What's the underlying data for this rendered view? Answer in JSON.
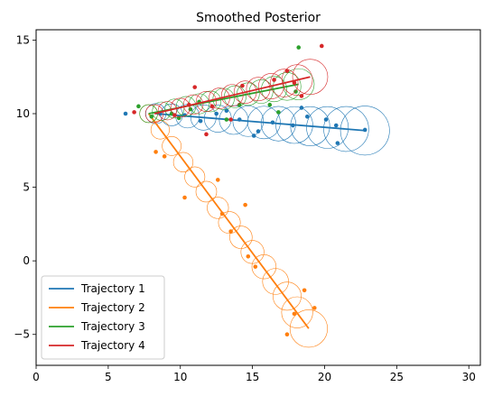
{
  "chart_data": {
    "type": "scatter",
    "title": "Smoothed Posterior",
    "xlabel": "",
    "ylabel": "",
    "xlim": [
      0,
      30.8
    ],
    "ylim": [
      -7.1,
      15.7
    ],
    "xticks": [
      0,
      5,
      10,
      15,
      20,
      25,
      30
    ],
    "yticks": [
      -5,
      0,
      5,
      10,
      15
    ],
    "grid": false,
    "legend_position": "lower-left",
    "series": [
      {
        "name": "Trajectory 1",
        "color": "#1f77b4",
        "line": [
          [
            8.3,
            10.0
          ],
          [
            22.8,
            8.85
          ]
        ],
        "circles": [
          {
            "x": 8.3,
            "y": 10.0,
            "r": 0.7
          },
          {
            "x": 9.4,
            "y": 9.92,
            "r": 0.76
          },
          {
            "x": 10.5,
            "y": 9.83,
            "r": 0.82
          },
          {
            "x": 11.6,
            "y": 9.74,
            "r": 0.88
          },
          {
            "x": 12.6,
            "y": 9.66,
            "r": 0.94
          },
          {
            "x": 13.7,
            "y": 9.57,
            "r": 1.0
          },
          {
            "x": 14.7,
            "y": 9.49,
            "r": 1.06
          },
          {
            "x": 15.8,
            "y": 9.4,
            "r": 1.13
          },
          {
            "x": 16.8,
            "y": 9.32,
            "r": 1.2
          },
          {
            "x": 17.9,
            "y": 9.23,
            "r": 1.28
          },
          {
            "x": 19.0,
            "y": 9.15,
            "r": 1.36
          },
          {
            "x": 20.2,
            "y": 9.06,
            "r": 1.45
          },
          {
            "x": 21.5,
            "y": 8.96,
            "r": 1.56
          },
          {
            "x": 22.8,
            "y": 8.85,
            "r": 1.7
          }
        ],
        "points": [
          [
            6.2,
            10.0
          ],
          [
            8.6,
            10.0
          ],
          [
            10.3,
            9.9
          ],
          [
            11.4,
            9.5
          ],
          [
            12.5,
            10.0
          ],
          [
            13.2,
            10.2
          ],
          [
            14.1,
            9.6
          ],
          [
            15.1,
            8.5
          ],
          [
            15.4,
            8.8
          ],
          [
            16.4,
            9.4
          ],
          [
            17.8,
            9.2
          ],
          [
            18.4,
            10.4
          ],
          [
            18.8,
            9.8
          ],
          [
            20.1,
            9.6
          ],
          [
            20.9,
            8.0
          ],
          [
            20.8,
            9.2
          ],
          [
            22.8,
            8.9
          ]
        ]
      },
      {
        "name": "Trajectory 2",
        "color": "#ff7f0e",
        "line": [
          [
            7.8,
            10.0
          ],
          [
            18.9,
            -4.6
          ]
        ],
        "circles": [
          {
            "x": 7.8,
            "y": 10.0,
            "r": 0.62
          },
          {
            "x": 8.6,
            "y": 8.9,
            "r": 0.64
          },
          {
            "x": 9.4,
            "y": 7.8,
            "r": 0.66
          },
          {
            "x": 10.2,
            "y": 6.7,
            "r": 0.68
          },
          {
            "x": 11.0,
            "y": 5.7,
            "r": 0.7
          },
          {
            "x": 11.8,
            "y": 4.7,
            "r": 0.72
          },
          {
            "x": 12.6,
            "y": 3.6,
            "r": 0.74
          },
          {
            "x": 13.4,
            "y": 2.6,
            "r": 0.76
          },
          {
            "x": 14.2,
            "y": 1.6,
            "r": 0.78
          },
          {
            "x": 15.0,
            "y": 0.6,
            "r": 0.8
          },
          {
            "x": 15.8,
            "y": -0.4,
            "r": 0.84
          },
          {
            "x": 16.6,
            "y": -1.4,
            "r": 0.9
          },
          {
            "x": 17.4,
            "y": -2.4,
            "r": 0.98
          },
          {
            "x": 18.1,
            "y": -3.5,
            "r": 1.08
          },
          {
            "x": 18.9,
            "y": -4.6,
            "r": 1.3
          }
        ],
        "points": [
          [
            8.3,
            7.4
          ],
          [
            8.9,
            7.1
          ],
          [
            10.3,
            4.3
          ],
          [
            12.6,
            5.5
          ],
          [
            12.9,
            3.2
          ],
          [
            13.5,
            2.0
          ],
          [
            14.5,
            3.8
          ],
          [
            14.7,
            0.3
          ],
          [
            15.2,
            -0.4
          ],
          [
            17.4,
            -5.0
          ],
          [
            17.9,
            -3.6
          ],
          [
            18.6,
            -2.0
          ],
          [
            19.3,
            -3.2
          ]
        ]
      },
      {
        "name": "Trajectory 3",
        "color": "#2ca02c",
        "line": [
          [
            7.8,
            10.0
          ],
          [
            18.2,
            12.0
          ]
        ],
        "circles": [
          {
            "x": 7.8,
            "y": 10.0,
            "r": 0.62
          },
          {
            "x": 8.7,
            "y": 10.17,
            "r": 0.64
          },
          {
            "x": 9.6,
            "y": 10.35,
            "r": 0.66
          },
          {
            "x": 10.4,
            "y": 10.5,
            "r": 0.68
          },
          {
            "x": 11.3,
            "y": 10.67,
            "r": 0.7
          },
          {
            "x": 12.1,
            "y": 10.83,
            "r": 0.72
          },
          {
            "x": 13.0,
            "y": 11.0,
            "r": 0.74
          },
          {
            "x": 13.8,
            "y": 11.15,
            "r": 0.76
          },
          {
            "x": 14.7,
            "y": 11.33,
            "r": 0.78
          },
          {
            "x": 15.6,
            "y": 11.5,
            "r": 0.82
          },
          {
            "x": 16.5,
            "y": 11.67,
            "r": 0.88
          },
          {
            "x": 17.4,
            "y": 11.85,
            "r": 0.96
          },
          {
            "x": 18.2,
            "y": 12.0,
            "r": 1.08
          }
        ],
        "points": [
          [
            7.1,
            10.5
          ],
          [
            8.0,
            9.8
          ],
          [
            9.4,
            10.0
          ],
          [
            9.9,
            9.7
          ],
          [
            10.7,
            10.3
          ],
          [
            11.3,
            10.8
          ],
          [
            13.2,
            9.6
          ],
          [
            14.1,
            10.6
          ],
          [
            16.2,
            10.6
          ],
          [
            16.8,
            10.1
          ],
          [
            18.2,
            14.5
          ],
          [
            18.0,
            11.5
          ]
        ]
      },
      {
        "name": "Trajectory 4",
        "color": "#d62728",
        "line": [
          [
            8.2,
            10.0
          ],
          [
            19.0,
            12.5
          ]
        ],
        "circles": [
          {
            "x": 8.2,
            "y": 10.0,
            "r": 0.62
          },
          {
            "x": 9.1,
            "y": 10.2,
            "r": 0.64
          },
          {
            "x": 10.0,
            "y": 10.41,
            "r": 0.66
          },
          {
            "x": 10.9,
            "y": 10.62,
            "r": 0.68
          },
          {
            "x": 11.8,
            "y": 10.83,
            "r": 0.7
          },
          {
            "x": 12.7,
            "y": 11.04,
            "r": 0.72
          },
          {
            "x": 13.6,
            "y": 11.25,
            "r": 0.75
          },
          {
            "x": 14.5,
            "y": 11.46,
            "r": 0.78
          },
          {
            "x": 15.4,
            "y": 11.67,
            "r": 0.82
          },
          {
            "x": 16.3,
            "y": 11.87,
            "r": 0.88
          },
          {
            "x": 17.2,
            "y": 12.08,
            "r": 0.96
          },
          {
            "x": 18.1,
            "y": 12.29,
            "r": 1.06
          },
          {
            "x": 19.0,
            "y": 12.5,
            "r": 1.22
          }
        ],
        "points": [
          [
            6.8,
            10.1
          ],
          [
            9.6,
            9.9
          ],
          [
            10.6,
            10.6
          ],
          [
            11.0,
            11.8
          ],
          [
            11.8,
            8.6
          ],
          [
            12.2,
            10.5
          ],
          [
            13.5,
            9.6
          ],
          [
            14.3,
            11.9
          ],
          [
            16.5,
            12.3
          ],
          [
            17.4,
            12.9
          ],
          [
            17.9,
            12.1
          ],
          [
            18.4,
            11.2
          ],
          [
            19.8,
            14.6
          ]
        ]
      }
    ]
  }
}
